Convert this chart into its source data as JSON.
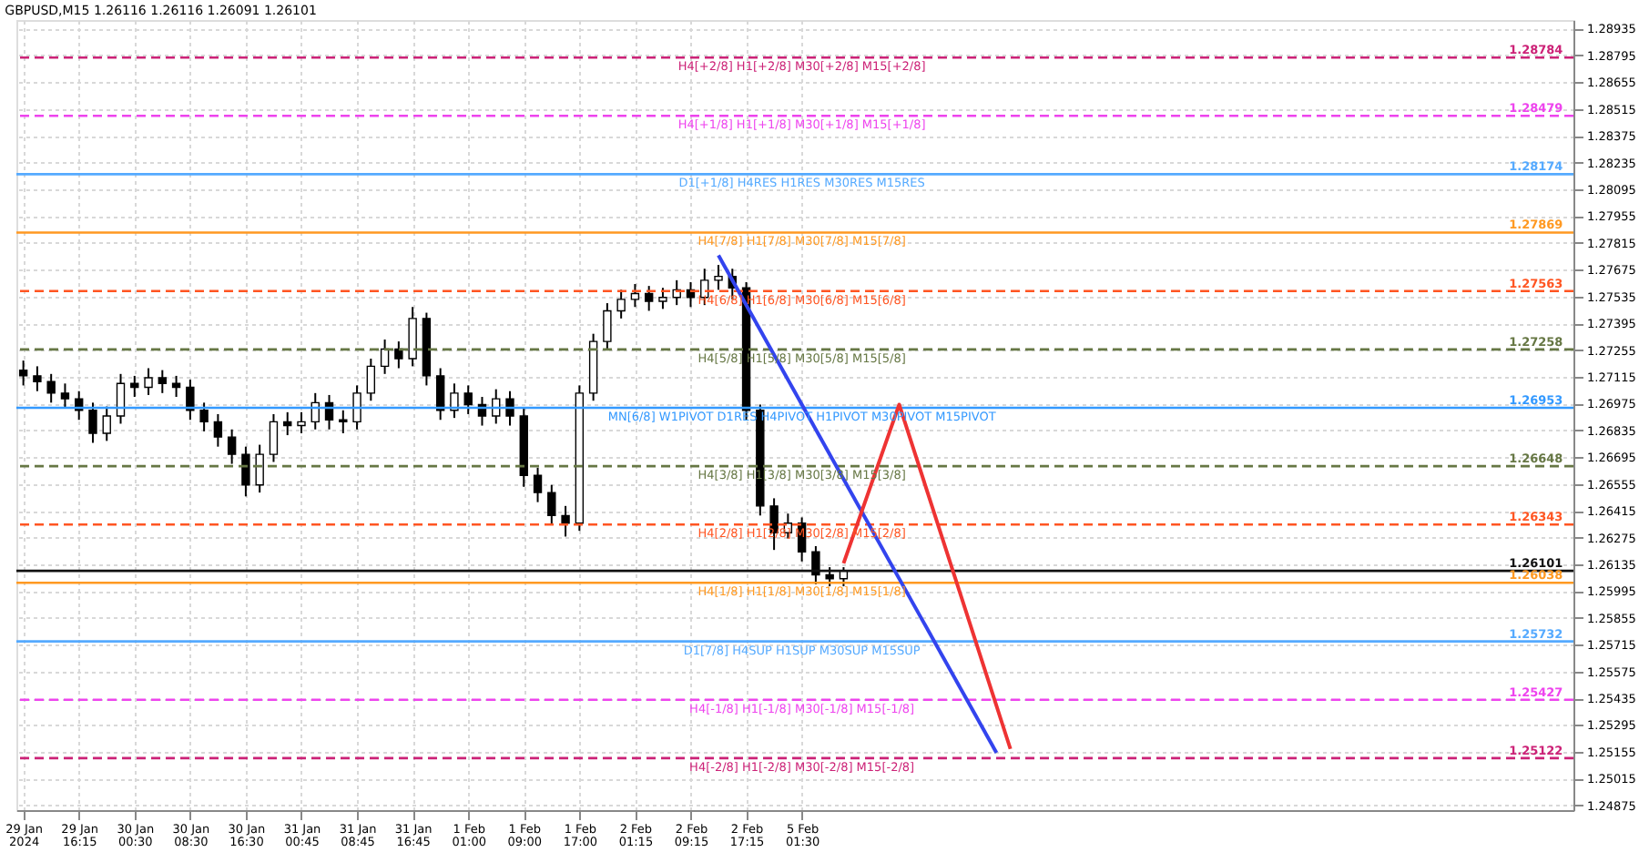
{
  "chart_data": {
    "type": "candlestick",
    "title": "GBPUSD,M15  1.26116 1.26116 1.26091 1.26101",
    "categories": [
      "29 Jan 2024",
      null,
      null,
      null,
      "29 Jan 16:15",
      null,
      null,
      null,
      "30 Jan 00:30",
      null,
      null,
      null,
      "30 Jan 08:30",
      null,
      null,
      null,
      "30 Jan 16:30",
      null,
      null,
      null,
      "31 Jan 00:45",
      null,
      null,
      null,
      "31 Jan 08:45",
      null,
      null,
      null,
      "31 Jan 16:45",
      null,
      null,
      null,
      "1 Feb 01:00",
      null,
      null,
      null,
      "1 Feb 09:00",
      null,
      null,
      null,
      "1 Feb 17:00",
      null,
      null,
      null,
      "2 Feb 01:15",
      null,
      null,
      null,
      "2 Feb 09:15",
      null,
      null,
      null,
      "2 Feb 17:15",
      null,
      null,
      null,
      "5 Feb 01:30",
      null,
      null,
      null,
      null,
      null,
      null,
      null,
      null,
      null,
      null,
      null,
      null,
      null,
      null,
      null,
      null,
      null,
      null,
      null,
      null,
      null,
      null,
      null,
      null,
      null,
      null,
      null,
      null,
      null,
      null,
      null,
      null,
      null,
      null,
      null,
      null,
      null,
      null,
      null,
      null,
      null,
      null,
      null,
      null,
      null,
      null,
      null,
      null,
      null,
      null,
      null,
      null,
      null,
      null,
      null
    ],
    "ohlc": [
      [
        1.2715,
        1.272,
        1.2707,
        1.2712
      ],
      [
        1.2712,
        1.2717,
        1.2704,
        1.2709
      ],
      [
        1.2709,
        1.2713,
        1.2698,
        1.2703
      ],
      [
        1.2703,
        1.2708,
        1.2695,
        1.27
      ],
      [
        1.27,
        1.2704,
        1.2689,
        1.2694
      ],
      [
        1.2694,
        1.2698,
        1.2677,
        1.2682
      ],
      [
        1.2682,
        1.2696,
        1.2678,
        1.2691
      ],
      [
        1.2691,
        1.2713,
        1.2687,
        1.2708
      ],
      [
        1.2708,
        1.2712,
        1.2701,
        1.2706
      ],
      [
        1.2706,
        1.2716,
        1.2702,
        1.2711
      ],
      [
        1.2711,
        1.2715,
        1.2703,
        1.2708
      ],
      [
        1.2708,
        1.2712,
        1.2701,
        1.2706
      ],
      [
        1.2706,
        1.271,
        1.2689,
        1.2694
      ],
      [
        1.2694,
        1.2698,
        1.2683,
        1.2688
      ],
      [
        1.2688,
        1.2692,
        1.2675,
        1.268
      ],
      [
        1.268,
        1.2684,
        1.2666,
        1.2671
      ],
      [
        1.2671,
        1.2675,
        1.2649,
        1.2655
      ],
      [
        1.2655,
        1.2676,
        1.2651,
        1.2671
      ],
      [
        1.2671,
        1.2692,
        1.2667,
        1.2688
      ],
      [
        1.2688,
        1.2693,
        1.2681,
        1.2686
      ],
      [
        1.2686,
        1.2693,
        1.2682,
        1.2688
      ],
      [
        1.2688,
        1.2703,
        1.2684,
        1.2698
      ],
      [
        1.2698,
        1.2702,
        1.2684,
        1.2689
      ],
      [
        1.2689,
        1.2694,
        1.2682,
        1.2688
      ],
      [
        1.2688,
        1.2707,
        1.2684,
        1.2703
      ],
      [
        1.2703,
        1.2721,
        1.2699,
        1.2717
      ],
      [
        1.2717,
        1.2731,
        1.2713,
        1.2726
      ],
      [
        1.2726,
        1.273,
        1.2716,
        1.2721
      ],
      [
        1.2721,
        1.2748,
        1.2717,
        1.2742
      ],
      [
        1.2742,
        1.2745,
        1.2707,
        1.2712
      ],
      [
        1.2712,
        1.2716,
        1.2689,
        1.2694
      ],
      [
        1.2694,
        1.2708,
        1.269,
        1.2703
      ],
      [
        1.2703,
        1.2707,
        1.2692,
        1.2697
      ],
      [
        1.2697,
        1.2701,
        1.2686,
        1.2691
      ],
      [
        1.2691,
        1.2705,
        1.2687,
        1.27
      ],
      [
        1.27,
        1.2704,
        1.2686,
        1.2691
      ],
      [
        1.2691,
        1.2695,
        1.2654,
        1.266
      ],
      [
        1.266,
        1.2664,
        1.2646,
        1.2651
      ],
      [
        1.2651,
        1.2655,
        1.2634,
        1.2639
      ],
      [
        1.2639,
        1.2644,
        1.2628,
        1.2635
      ],
      [
        1.2635,
        1.2707,
        1.2631,
        1.2703
      ],
      [
        1.2703,
        1.2734,
        1.2699,
        1.273
      ],
      [
        1.273,
        1.275,
        1.2726,
        1.2746
      ],
      [
        1.2746,
        1.2757,
        1.2742,
        1.2752
      ],
      [
        1.2752,
        1.276,
        1.2748,
        1.2755
      ],
      [
        1.2755,
        1.2759,
        1.2746,
        1.2751
      ],
      [
        1.2751,
        1.2758,
        1.2747,
        1.2753
      ],
      [
        1.2753,
        1.2762,
        1.2749,
        1.2757
      ],
      [
        1.2757,
        1.2761,
        1.2748,
        1.2753
      ],
      [
        1.2753,
        1.2768,
        1.2749,
        1.2762
      ],
      [
        1.2762,
        1.277,
        1.2757,
        1.2764
      ],
      [
        1.2764,
        1.2768,
        1.2752,
        1.2758
      ],
      [
        1.2758,
        1.2761,
        1.2689,
        1.2694
      ],
      [
        1.2694,
        1.2697,
        1.2639,
        1.2644
      ],
      [
        1.2644,
        1.2648,
        1.2621,
        1.263
      ],
      [
        1.263,
        1.264,
        1.2627,
        1.2635
      ],
      [
        1.2635,
        1.2638,
        1.2615,
        1.262
      ],
      [
        1.262,
        1.2623,
        1.2603,
        1.2608
      ],
      [
        1.2608,
        1.2612,
        1.2602,
        1.2606
      ],
      [
        1.2606,
        1.2612,
        1.2602,
        1.261
      ],
      null,
      null,
      null,
      null,
      null,
      null,
      null,
      null,
      null,
      null,
      null,
      null,
      null,
      null,
      null,
      null,
      null,
      null,
      null,
      null,
      null,
      null,
      null,
      null,
      null,
      null,
      null,
      null,
      null,
      null,
      null,
      null,
      null,
      null,
      null,
      null,
      null,
      null,
      null,
      null,
      null,
      null,
      null,
      null,
      null,
      null,
      null,
      null,
      null,
      null,
      null,
      null
    ],
    "series": [
      {
        "type": "line",
        "color": "#3344ee",
        "values": [
          null,
          null,
          null,
          null,
          null,
          null,
          null,
          null,
          null,
          null,
          null,
          null,
          null,
          null,
          null,
          null,
          null,
          null,
          null,
          null,
          null,
          null,
          null,
          null,
          null,
          null,
          null,
          null,
          null,
          null,
          null,
          null,
          null,
          null,
          null,
          null,
          null,
          null,
          null,
          null,
          null,
          null,
          null,
          null,
          null,
          null,
          null,
          null,
          null,
          null,
          1.2775,
          null,
          null,
          null,
          null,
          null,
          null,
          null,
          null,
          null,
          null,
          null,
          null,
          null,
          null,
          null,
          null,
          null,
          null,
          null,
          1.2515,
          null,
          null,
          null,
          null,
          null,
          null,
          null,
          null,
          null,
          null,
          null,
          null,
          null,
          null,
          null,
          null,
          null,
          null,
          null,
          null,
          null,
          null,
          null,
          null,
          null,
          null,
          null,
          null,
          null,
          null,
          null,
          null,
          null,
          null,
          null,
          null,
          null,
          null,
          null,
          null,
          null
        ]
      },
      {
        "type": "line",
        "color": "#ee3333",
        "values": [
          null,
          null,
          null,
          null,
          null,
          null,
          null,
          null,
          null,
          null,
          null,
          null,
          null,
          null,
          null,
          null,
          null,
          null,
          null,
          null,
          null,
          null,
          null,
          null,
          null,
          null,
          null,
          null,
          null,
          null,
          null,
          null,
          null,
          null,
          null,
          null,
          null,
          null,
          null,
          null,
          null,
          null,
          null,
          null,
          null,
          null,
          null,
          null,
          null,
          null,
          null,
          null,
          null,
          null,
          null,
          null,
          null,
          null,
          null,
          1.2614,
          null,
          null,
          null,
          1.2697,
          null,
          null,
          null,
          null,
          null,
          null,
          null,
          1.2517,
          null,
          null,
          null,
          null,
          null,
          null,
          null,
          null,
          null,
          null,
          null,
          null,
          null,
          null,
          null,
          null,
          null,
          null,
          null,
          null,
          null,
          null,
          null,
          null,
          null,
          null,
          null,
          null,
          null,
          null,
          null,
          null,
          null,
          null,
          null,
          null,
          null,
          null,
          null,
          null
        ]
      }
    ],
    "ylim": [
      1.2485,
      1.2898
    ],
    "yticks": [
      1.24875,
      1.25015,
      1.25155,
      1.25295,
      1.25435,
      1.25575,
      1.25715,
      1.25855,
      1.25995,
      1.26135,
      1.26275,
      1.26415,
      1.26555,
      1.26695,
      1.26835,
      1.26975,
      1.27115,
      1.27255,
      1.27395,
      1.27535,
      1.27675,
      1.27815,
      1.27955,
      1.28095,
      1.28235,
      1.28375,
      1.28515,
      1.28655,
      1.28795,
      1.28935
    ],
    "grid": true,
    "ref_lines": [
      {
        "axis": "y",
        "value": 1.28784,
        "label": "H4[+2/8] H1[+2/8] M30[+2/8] M15[+2/8]",
        "color": "#cc2277",
        "line_style": "dashed"
      },
      {
        "axis": "y",
        "value": 1.28479,
        "label": "H4[+1/8] H1[+1/8] M30[+1/8] M15[+1/8]",
        "color": "#ee44ee",
        "line_style": "dashed"
      },
      {
        "axis": "y",
        "value": 1.28174,
        "label": "D1[+1/8] H4RES H1RES M30RES M15RES",
        "color": "#55aaff",
        "line_style": "solid"
      },
      {
        "axis": "y",
        "value": 1.27869,
        "label": "H4[7/8] H1[7/8] M30[7/8] M15[7/8]",
        "color": "#ff9922",
        "line_style": "solid"
      },
      {
        "axis": "y",
        "value": 1.27563,
        "label": "H4[6/8] H1[6/8] M30[6/8] M15[6/8]",
        "color": "#ff5522",
        "line_style": "dashed"
      },
      {
        "axis": "y",
        "value": 1.27258,
        "label": "H4[5/8] H1[5/8] M30[5/8] M15[5/8]",
        "color": "#667744",
        "line_style": "dashed"
      },
      {
        "axis": "y",
        "value": 1.26953,
        "label": "MN[6/8] W1PIVOT D1RES H4PIVOT H1PIVOT M30PIVOT M15PIVOT",
        "color": "#3399ff",
        "line_style": "solid"
      },
      {
        "axis": "y",
        "value": 1.26648,
        "label": "H4[3/8] H1[3/8] M30[3/8] M15[3/8]",
        "color": "#667744",
        "line_style": "dashed"
      },
      {
        "axis": "y",
        "value": 1.26343,
        "label": "H4[2/8] H1[2/8] M30[2/8] M15[2/8]",
        "color": "#ff5522",
        "line_style": "dashed"
      },
      {
        "axis": "y",
        "value": 1.26038,
        "label": "H4[1/8] H1[1/8] M30[1/8] M15[1/8]",
        "color": "#ff9922",
        "line_style": "solid"
      },
      {
        "axis": "y",
        "value": 1.25732,
        "label": "D1[7/8] H4SUP H1SUP M30SUP M15SUP",
        "color": "#55aaff",
        "line_style": "solid"
      },
      {
        "axis": "y",
        "value": 1.25427,
        "label": "H4[-1/8] H1[-1/8] M30[-1/8] M15[-1/8]",
        "color": "#ee44ee",
        "line_style": "dashed"
      },
      {
        "axis": "y",
        "value": 1.25122,
        "label": "H4[-2/8] H1[-2/8] M30[-2/8] M15[-2/8]",
        "color": "#cc2277",
        "line_style": "dashed"
      },
      {
        "axis": "y",
        "value": 1.26101,
        "label": null,
        "color": "#111111",
        "line_style": "solid"
      }
    ],
    "annotations": [
      {
        "text": "1.28784",
        "y": 1.28784
      },
      {
        "text": "1.28479",
        "y": 1.28479
      },
      {
        "text": "1.28174",
        "y": 1.28174
      },
      {
        "text": "1.27869",
        "y": 1.27869
      },
      {
        "text": "1.27563",
        "y": 1.27563
      },
      {
        "text": "1.27258",
        "y": 1.27258
      },
      {
        "text": "1.26953",
        "y": 1.26953
      },
      {
        "text": "1.26648",
        "y": 1.26648
      },
      {
        "text": "1.26343",
        "y": 1.26343
      },
      {
        "text": "1.26101",
        "y": 1.26101
      },
      {
        "text": "1.26038",
        "y": 1.26038
      },
      {
        "text": "1.25732",
        "y": 1.25732
      },
      {
        "text": "1.25427",
        "y": 1.25427
      },
      {
        "text": "1.25122",
        "y": 1.25122
      }
    ]
  }
}
